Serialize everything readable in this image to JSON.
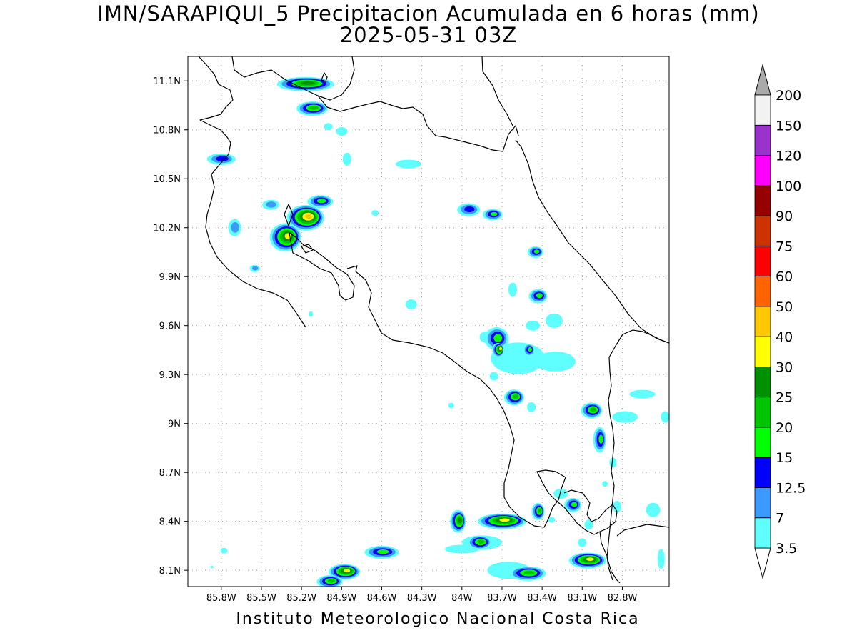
{
  "title": {
    "line1": "IMN/SARAPIQUI_5 Precipitacion Acumulada en 6 horas (mm)",
    "line2": "2025-05-31 03Z"
  },
  "footer": "Instituto Meteorologico Nacional Costa Rica",
  "map": {
    "lon_range": [
      -86.05,
      -82.45
    ],
    "lat_range": [
      8.0,
      11.25
    ],
    "lon_ticks": [
      {
        "value": -85.8,
        "label": "85.8W"
      },
      {
        "value": -85.5,
        "label": "85.5W"
      },
      {
        "value": -85.2,
        "label": "85.2W"
      },
      {
        "value": -84.9,
        "label": "84.9W"
      },
      {
        "value": -84.6,
        "label": "84.6W"
      },
      {
        "value": -84.3,
        "label": "84.3W"
      },
      {
        "value": -84.0,
        "label": "84W"
      },
      {
        "value": -83.7,
        "label": "83.7W"
      },
      {
        "value": -83.4,
        "label": "83.4W"
      },
      {
        "value": -83.1,
        "label": "83.1W"
      },
      {
        "value": -82.8,
        "label": "82.8W"
      }
    ],
    "lat_ticks": [
      {
        "value": 11.1,
        "label": "11.1N"
      },
      {
        "value": 10.8,
        "label": "10.8N"
      },
      {
        "value": 10.5,
        "label": "10.5N"
      },
      {
        "value": 10.2,
        "label": "10.2N"
      },
      {
        "value": 9.9,
        "label": "9.9N"
      },
      {
        "value": 9.6,
        "label": "9.6N"
      },
      {
        "value": 9.3,
        "label": "9.3N"
      },
      {
        "value": 9.0,
        "label": "9N"
      },
      {
        "value": 8.7,
        "label": "8.7N"
      },
      {
        "value": 8.4,
        "label": "8.4N"
      },
      {
        "value": 8.1,
        "label": "8.1N"
      }
    ],
    "grid": true,
    "coastline_color": "#000000"
  },
  "colorbar": {
    "labels": [
      "3.5",
      "7",
      "12.5",
      "15",
      "20",
      "25",
      "30",
      "40",
      "50",
      "60",
      "75",
      "90",
      "100",
      "120",
      "150",
      "200"
    ],
    "colors": [
      "#60ffff",
      "#3a9aff",
      "#0000ff",
      "#00ff00",
      "#00c400",
      "#009000",
      "#ffff00",
      "#ffc800",
      "#ff6400",
      "#ff0000",
      "#cc3300",
      "#960000",
      "#ff00ff",
      "#9933cc",
      "#f2f2f2"
    ],
    "under_color": "#ffffff",
    "over_color": "#aaaaaa"
  },
  "precip_cells": [
    {
      "lon": -85.17,
      "lat": 11.08,
      "rx": 40,
      "ry": 10,
      "level": 5
    },
    {
      "lon": -85.12,
      "lat": 10.93,
      "rx": 22,
      "ry": 10,
      "level": 4
    },
    {
      "lon": -85.8,
      "lat": 10.62,
      "rx": 20,
      "ry": 8,
      "level": 2
    },
    {
      "lon": -85.17,
      "lat": 10.26,
      "rx": 26,
      "ry": 18,
      "level": 7
    },
    {
      "lon": -85.32,
      "lat": 10.14,
      "rx": 22,
      "ry": 20,
      "level": 6
    },
    {
      "lon": -85.06,
      "lat": 10.36,
      "rx": 18,
      "ry": 9,
      "level": 3
    },
    {
      "lon": -85.43,
      "lat": 10.34,
      "rx": 12,
      "ry": 7,
      "level": 1
    },
    {
      "lon": -85.7,
      "lat": 10.2,
      "rx": 9,
      "ry": 12,
      "level": 1
    },
    {
      "lon": -83.95,
      "lat": 10.31,
      "rx": 16,
      "ry": 9,
      "level": 2
    },
    {
      "lon": -83.77,
      "lat": 10.28,
      "rx": 14,
      "ry": 8,
      "level": 3
    },
    {
      "lon": -83.45,
      "lat": 10.05,
      "rx": 11,
      "ry": 8,
      "level": 3
    },
    {
      "lon": -83.43,
      "lat": 9.78,
      "rx": 13,
      "ry": 10,
      "level": 3
    },
    {
      "lon": -83.74,
      "lat": 9.52,
      "rx": 17,
      "ry": 16,
      "level": 3
    },
    {
      "lon": -83.73,
      "lat": 9.45,
      "rx": 8,
      "ry": 10,
      "level": 6
    },
    {
      "lon": -83.5,
      "lat": 9.45,
      "rx": 8,
      "ry": 9,
      "level": 3
    },
    {
      "lon": -83.61,
      "lat": 9.16,
      "rx": 14,
      "ry": 11,
      "level": 4
    },
    {
      "lon": -83.03,
      "lat": 9.08,
      "rx": 15,
      "ry": 11,
      "level": 4
    },
    {
      "lon": -82.97,
      "lat": 8.9,
      "rx": 9,
      "ry": 18,
      "level": 3
    },
    {
      "lon": -83.7,
      "lat": 8.4,
      "rx": 34,
      "ry": 11,
      "level": 6
    },
    {
      "lon": -84.03,
      "lat": 8.4,
      "rx": 11,
      "ry": 16,
      "level": 5
    },
    {
      "lon": -83.87,
      "lat": 8.27,
      "rx": 17,
      "ry": 10,
      "level": 4
    },
    {
      "lon": -83.43,
      "lat": 8.46,
      "rx": 9,
      "ry": 12,
      "level": 4
    },
    {
      "lon": -83.17,
      "lat": 8.5,
      "rx": 12,
      "ry": 10,
      "level": 3
    },
    {
      "lon": -83.06,
      "lat": 8.16,
      "rx": 26,
      "ry": 11,
      "level": 6
    },
    {
      "lon": -83.51,
      "lat": 8.08,
      "rx": 26,
      "ry": 10,
      "level": 4
    },
    {
      "lon": -84.88,
      "lat": 8.09,
      "rx": 22,
      "ry": 11,
      "level": 6
    },
    {
      "lon": -84.6,
      "lat": 8.21,
      "rx": 24,
      "ry": 9,
      "level": 3
    },
    {
      "lon": -84.99,
      "lat": 8.03,
      "rx": 18,
      "ry": 9,
      "level": 4
    },
    {
      "lon": -85.55,
      "lat": 9.95,
      "rx": 7,
      "ry": 5,
      "level": 1
    }
  ],
  "light_patches": [
    {
      "lon": -84.4,
      "lat": 10.59,
      "rx": 18,
      "ry": 6
    },
    {
      "lon": -84.86,
      "lat": 10.62,
      "rx": 6,
      "ry": 9
    },
    {
      "lon": -84.9,
      "lat": 10.79,
      "rx": 8,
      "ry": 6
    },
    {
      "lon": -85.0,
      "lat": 10.82,
      "rx": 6,
      "ry": 5
    },
    {
      "lon": -84.65,
      "lat": 10.29,
      "rx": 5,
      "ry": 4
    },
    {
      "lon": -84.38,
      "lat": 9.73,
      "rx": 8,
      "ry": 7
    },
    {
      "lon": -83.62,
      "lat": 9.82,
      "rx": 6,
      "ry": 10
    },
    {
      "lon": -83.47,
      "lat": 9.6,
      "rx": 10,
      "ry": 7
    },
    {
      "lon": -83.31,
      "lat": 9.63,
      "rx": 12,
      "ry": 10
    },
    {
      "lon": -83.58,
      "lat": 9.4,
      "rx": 38,
      "ry": 22
    },
    {
      "lon": -83.3,
      "lat": 9.38,
      "rx": 28,
      "ry": 14
    },
    {
      "lon": -83.82,
      "lat": 9.53,
      "rx": 9,
      "ry": 8
    },
    {
      "lon": -83.76,
      "lat": 9.29,
      "rx": 6,
      "ry": 6
    },
    {
      "lon": -83.48,
      "lat": 9.1,
      "rx": 6,
      "ry": 7
    },
    {
      "lon": -84.08,
      "lat": 9.11,
      "rx": 4,
      "ry": 4
    },
    {
      "lon": -82.78,
      "lat": 9.04,
      "rx": 18,
      "ry": 8
    },
    {
      "lon": -82.65,
      "lat": 9.18,
      "rx": 18,
      "ry": 6
    },
    {
      "lon": -82.48,
      "lat": 9.04,
      "rx": 6,
      "ry": 8
    },
    {
      "lon": -82.87,
      "lat": 8.76,
      "rx": 5,
      "ry": 7
    },
    {
      "lon": -83.26,
      "lat": 8.57,
      "rx": 10,
      "ry": 7
    },
    {
      "lon": -82.84,
      "lat": 8.49,
      "rx": 6,
      "ry": 8
    },
    {
      "lon": -82.57,
      "lat": 8.47,
      "rx": 10,
      "ry": 10
    },
    {
      "lon": -82.51,
      "lat": 8.17,
      "rx": 5,
      "ry": 14
    },
    {
      "lon": -83.1,
      "lat": 8.27,
      "rx": 6,
      "ry": 6
    },
    {
      "lon": -83.05,
      "lat": 8.38,
      "rx": 6,
      "ry": 7
    },
    {
      "lon": -84.0,
      "lat": 8.23,
      "rx": 24,
      "ry": 6
    },
    {
      "lon": -83.85,
      "lat": 8.27,
      "rx": 28,
      "ry": 10
    },
    {
      "lon": -83.65,
      "lat": 8.1,
      "rx": 30,
      "ry": 12
    },
    {
      "lon": -82.93,
      "lat": 8.63,
      "rx": 4,
      "ry": 4
    },
    {
      "lon": -83.33,
      "lat": 8.41,
      "rx": 5,
      "ry": 4
    },
    {
      "lon": -85.78,
      "lat": 8.22,
      "rx": 5,
      "ry": 4
    },
    {
      "lon": -85.87,
      "lat": 8.12,
      "rx": 2,
      "ry": 2
    },
    {
      "lon": -85.13,
      "lat": 9.67,
      "rx": 3,
      "ry": 4
    }
  ]
}
